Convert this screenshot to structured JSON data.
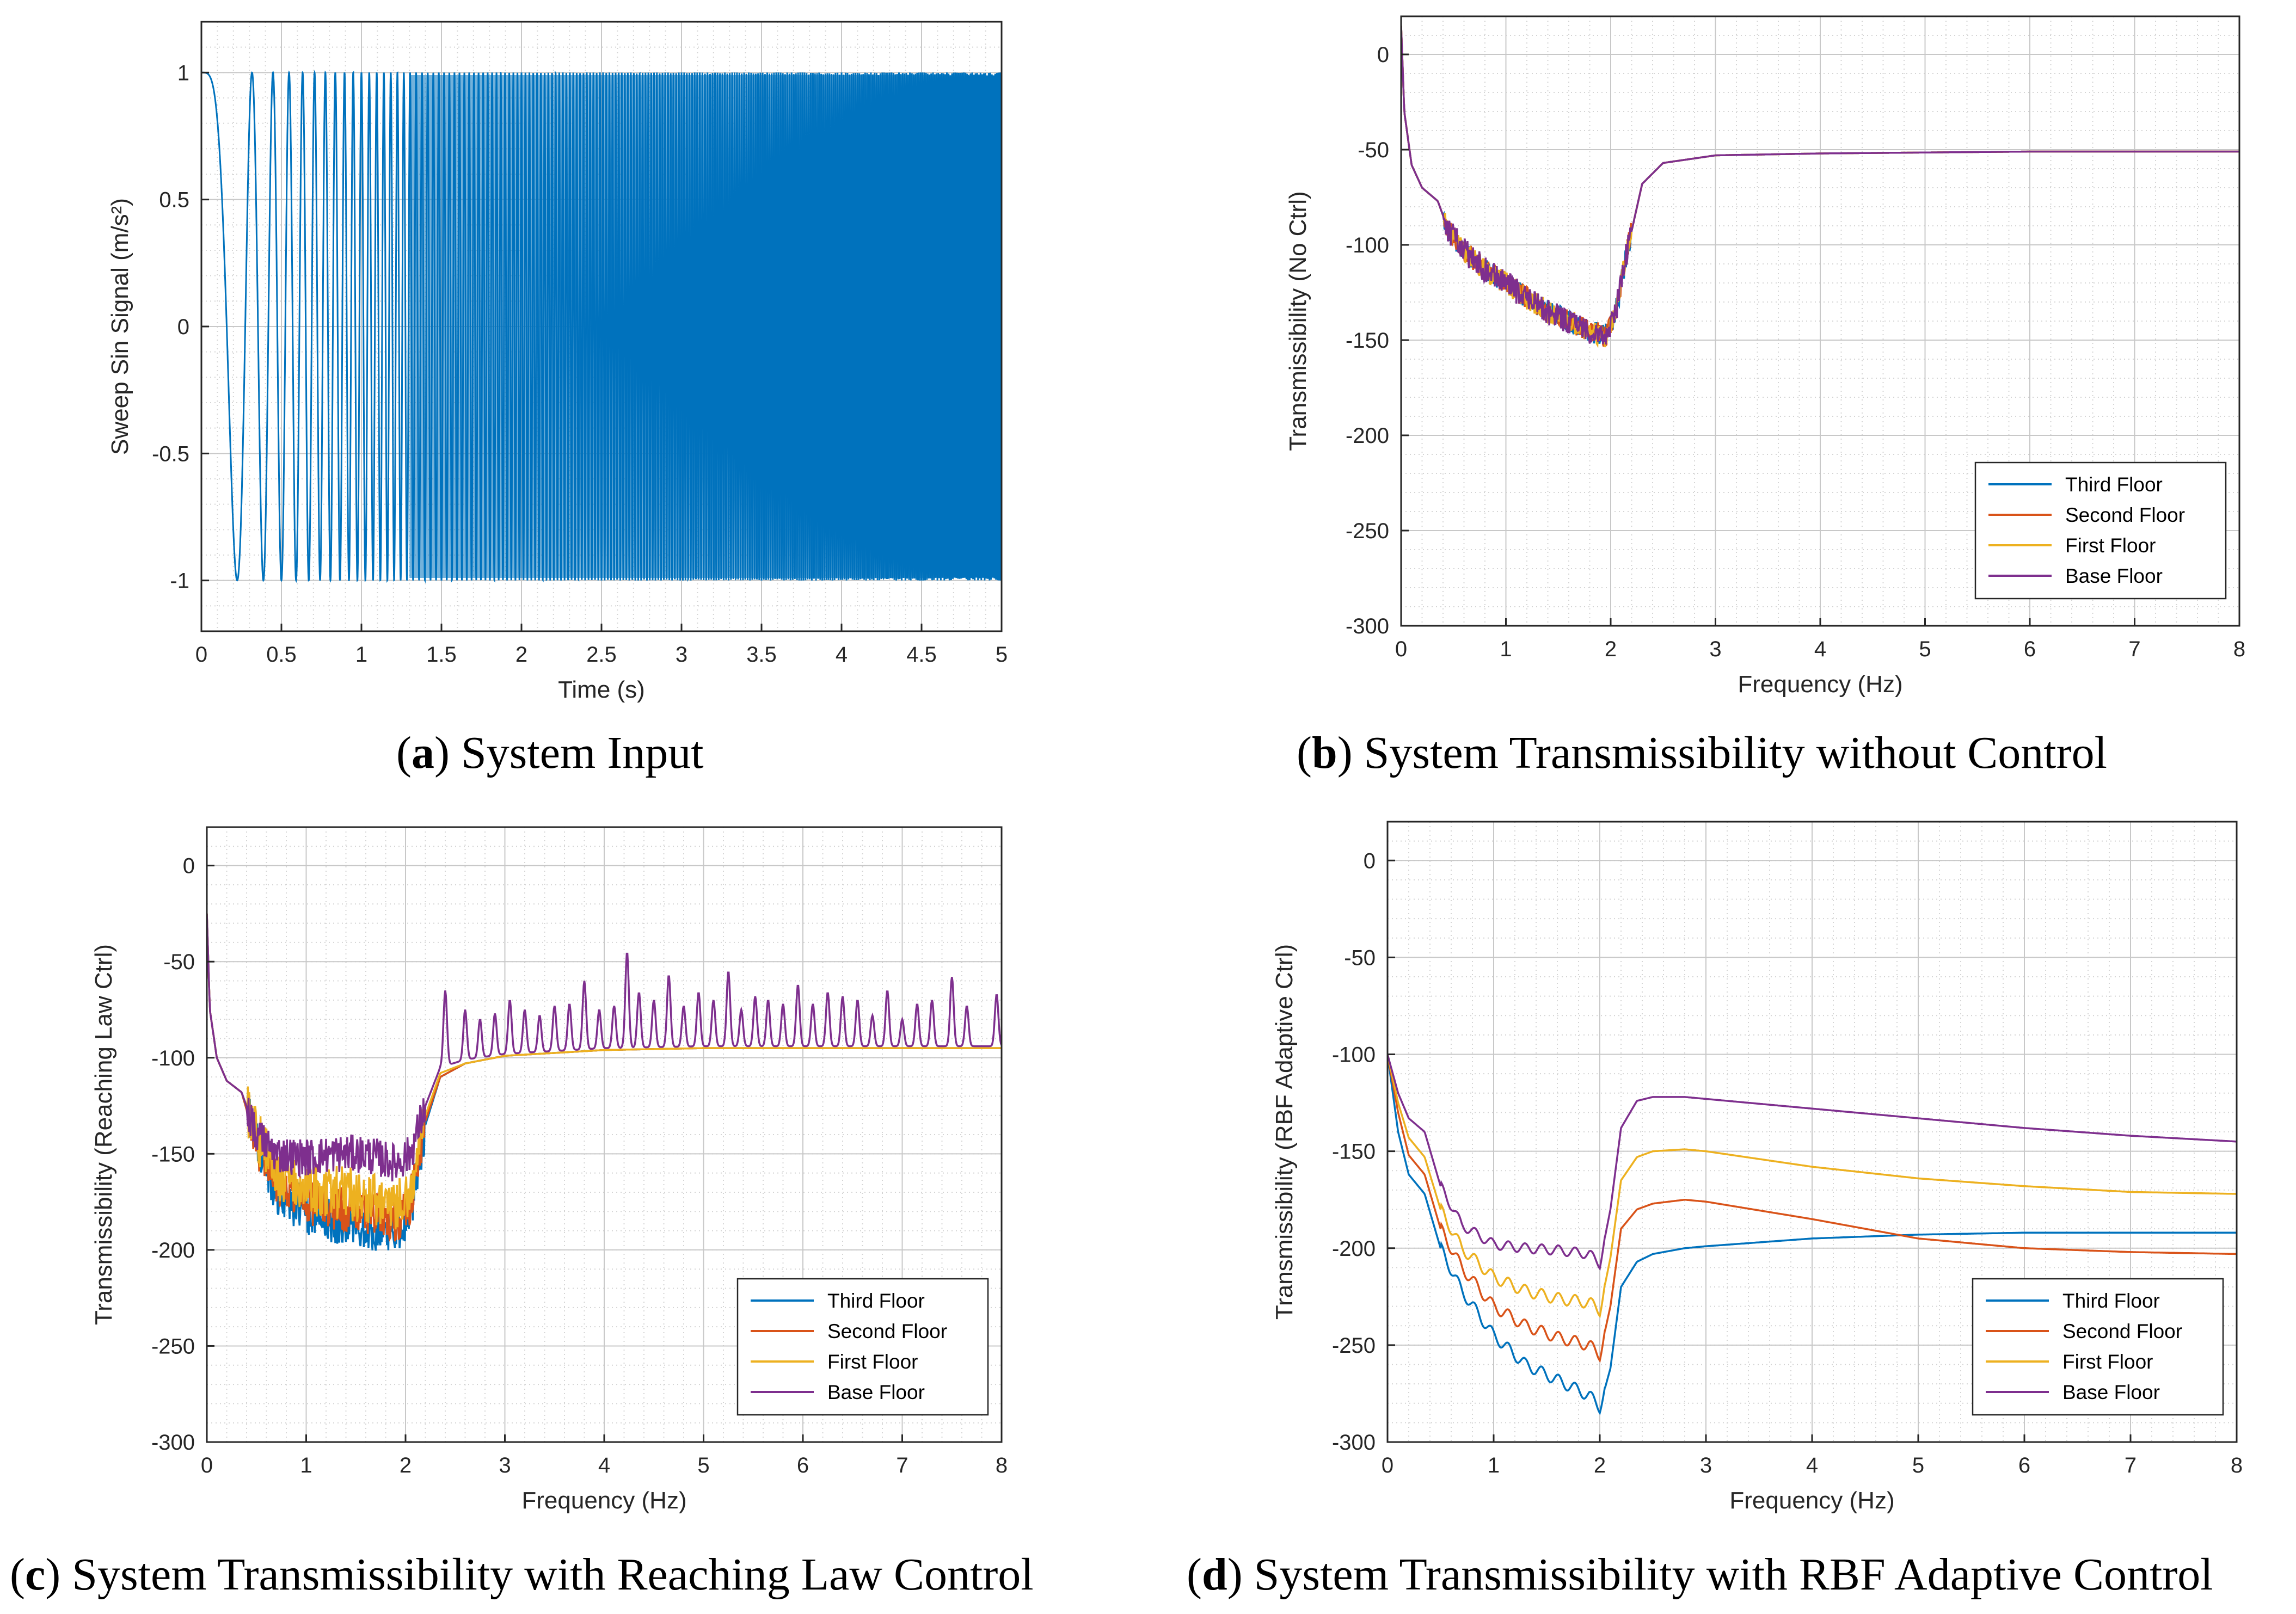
{
  "colors": {
    "blue": "#0072BD",
    "orange": "#D95319",
    "yellow": "#EDB120",
    "purple": "#7E2F8E",
    "grid": "#d4d4d4",
    "axis": "#262626"
  },
  "captions": [
    {
      "letter": "a",
      "text": ") System Input"
    },
    {
      "letter": "b",
      "text": ") System Transmissibility without Control"
    },
    {
      "letter": "c",
      "text": ") System Transmissibility with Reaching Law Control"
    },
    {
      "letter": "d",
      "text": ") System Transmissibility with RBF Adaptive Control"
    }
  ],
  "chart_data": [
    {
      "id": "a",
      "type": "line",
      "title": "System Input",
      "xlabel": "Time (s)",
      "ylabel": "Sweep Sin Signal (m/s²)",
      "xlim": [
        0,
        5
      ],
      "ylim": [
        -1.2,
        1.2
      ],
      "xticks": [
        0,
        0.5,
        1,
        1.5,
        2,
        2.5,
        3,
        3.5,
        4,
        4.5,
        5
      ],
      "xticklabels": [
        "0",
        "0.5",
        "1",
        "1.5",
        "2",
        "2.5",
        "3",
        "3.5",
        "4",
        "4.5",
        "5"
      ],
      "yticks": [
        -1,
        -0.5,
        0,
        0.5,
        1
      ],
      "yticklabels": [
        "-1",
        "-0.5",
        "0",
        "0.5",
        "1"
      ],
      "signal": {
        "kind": "sweep_sine",
        "amplitude": 1,
        "f_start_hz": 0,
        "f_end_hz": 100,
        "duration_s": 5
      },
      "series": [
        {
          "name": "Sweep Sin Signal",
          "color": "#0072BD"
        }
      ]
    },
    {
      "id": "b",
      "type": "line",
      "title": "System Transmissibility without Control",
      "xlabel": "Frequency (Hz)",
      "ylabel": "Transmissibility (No Ctrl)",
      "xlim": [
        0,
        8
      ],
      "ylim": [
        -300,
        20
      ],
      "xticks": [
        0,
        1,
        2,
        3,
        4,
        5,
        6,
        7,
        8
      ],
      "xticklabels": [
        "0",
        "1",
        "2",
        "3",
        "4",
        "5",
        "6",
        "7",
        "8"
      ],
      "yticks": [
        -300,
        -250,
        -200,
        -150,
        -100,
        -50,
        0
      ],
      "yticklabels": [
        "-300",
        "-250",
        "-200",
        "-150",
        "-100",
        "-50",
        "0"
      ],
      "legend": {
        "location": "bottom-right"
      },
      "series": [
        {
          "name": "Third Floor",
          "color": "#0072BD",
          "x": [
            0,
            0.03,
            0.1,
            0.2,
            0.35,
            0.45,
            0.6,
            0.8,
            1.0,
            1.2,
            1.4,
            1.6,
            1.8,
            1.95,
            2.05,
            2.15,
            2.3,
            2.5,
            3,
            4,
            5,
            6,
            7,
            8
          ],
          "y": [
            15,
            -30,
            -58,
            -70,
            -77,
            -92,
            -103,
            -113,
            -120,
            -128,
            -135,
            -140,
            -145,
            -148,
            -135,
            -105,
            -68,
            -57,
            -53,
            -52,
            -51.5,
            -51,
            -51,
            -51
          ],
          "noise": 6
        },
        {
          "name": "Second Floor",
          "color": "#D95319",
          "x": [
            0,
            0.03,
            0.1,
            0.2,
            0.35,
            0.45,
            0.6,
            0.8,
            1.0,
            1.2,
            1.4,
            1.6,
            1.8,
            1.95,
            2.05,
            2.15,
            2.3,
            2.5,
            3,
            4,
            5,
            6,
            7,
            8
          ],
          "y": [
            15,
            -30,
            -58,
            -70,
            -77,
            -92,
            -103,
            -113,
            -120,
            -128,
            -135,
            -140,
            -145,
            -148,
            -135,
            -105,
            -68,
            -57,
            -53,
            -52,
            -51.5,
            -51,
            -51,
            -51
          ],
          "noise": 6
        },
        {
          "name": "First Floor",
          "color": "#EDB120",
          "x": [
            0,
            0.03,
            0.1,
            0.2,
            0.35,
            0.45,
            0.6,
            0.8,
            1.0,
            1.2,
            1.4,
            1.6,
            1.8,
            1.95,
            2.05,
            2.15,
            2.3,
            2.5,
            3,
            4,
            5,
            6,
            7,
            8
          ],
          "y": [
            15,
            -30,
            -58,
            -70,
            -77,
            -92,
            -103,
            -113,
            -120,
            -128,
            -135,
            -140,
            -145,
            -148,
            -135,
            -105,
            -68,
            -57,
            -53,
            -52,
            -51.5,
            -51,
            -51,
            -51
          ],
          "noise": 6
        },
        {
          "name": "Base Floor",
          "color": "#7E2F8E",
          "x": [
            0,
            0.03,
            0.1,
            0.2,
            0.35,
            0.45,
            0.6,
            0.8,
            1.0,
            1.2,
            1.4,
            1.6,
            1.8,
            1.95,
            2.05,
            2.15,
            2.3,
            2.5,
            3,
            4,
            5,
            6,
            7,
            8
          ],
          "y": [
            15,
            -30,
            -58,
            -70,
            -77,
            -92,
            -103,
            -113,
            -120,
            -128,
            -135,
            -140,
            -145,
            -148,
            -135,
            -105,
            -68,
            -57,
            -53,
            -52,
            -51.5,
            -51,
            -51,
            -51
          ],
          "noise": 7
        }
      ]
    },
    {
      "id": "c",
      "type": "line",
      "title": "System Transmissibility with Reaching Law Control",
      "xlabel": "Frequency (Hz)",
      "ylabel": "Transmissibility (Reaching Law Ctrl)",
      "xlim": [
        0,
        8
      ],
      "ylim": [
        -300,
        20
      ],
      "xticks": [
        0,
        1,
        2,
        3,
        4,
        5,
        6,
        7,
        8
      ],
      "xticklabels": [
        "0",
        "1",
        "2",
        "3",
        "4",
        "5",
        "6",
        "7",
        "8"
      ],
      "yticks": [
        -300,
        -250,
        -200,
        -150,
        -100,
        -50,
        0
      ],
      "yticklabels": [
        "-300",
        "-250",
        "-200",
        "-150",
        "-100",
        "-50",
        "0"
      ],
      "legend": {
        "location": "bottom-right"
      },
      "series": [
        {
          "name": "Third Floor",
          "color": "#0072BD",
          "x": [
            0,
            0.03,
            0.1,
            0.2,
            0.35,
            0.5,
            0.7,
            1.0,
            1.3,
            1.6,
            1.9,
            2.05,
            2.2,
            2.35,
            2.6,
            3.0,
            4.0,
            5.0,
            6.0,
            7.0,
            8.0
          ],
          "y": [
            -25,
            -75,
            -100,
            -112,
            -118,
            -145,
            -170,
            -180,
            -185,
            -188,
            -190,
            -180,
            -135,
            -110,
            -103,
            -99,
            -96,
            -95,
            -95,
            -95,
            -95
          ],
          "noise": 12
        },
        {
          "name": "Second Floor",
          "color": "#D95319",
          "x": [
            0,
            0.03,
            0.1,
            0.2,
            0.35,
            0.5,
            0.7,
            1.0,
            1.3,
            1.6,
            1.9,
            2.05,
            2.2,
            2.35,
            2.6,
            3.0,
            4.0,
            5.0,
            6.0,
            7.0,
            8.0
          ],
          "y": [
            -25,
            -75,
            -100,
            -112,
            -118,
            -145,
            -165,
            -175,
            -178,
            -180,
            -185,
            -175,
            -133,
            -110,
            -103,
            -99,
            -96,
            -95,
            -95,
            -95,
            -95
          ],
          "noise": 12
        },
        {
          "name": "First Floor",
          "color": "#EDB120",
          "x": [
            0,
            0.03,
            0.1,
            0.2,
            0.35,
            0.5,
            0.7,
            1.0,
            1.3,
            1.6,
            1.9,
            2.05,
            2.2,
            2.35,
            2.6,
            3.0,
            4.0,
            5.0,
            6.0,
            7.0,
            8.0
          ],
          "y": [
            -25,
            -75,
            -100,
            -112,
            -118,
            -140,
            -160,
            -168,
            -170,
            -172,
            -176,
            -168,
            -130,
            -108,
            -103,
            -99,
            -96,
            -95,
            -95,
            -95,
            -95
          ],
          "noise": 14
        },
        {
          "name": "Base Floor",
          "color": "#7E2F8E",
          "x": [
            0,
            0.03,
            0.1,
            0.2,
            0.35,
            0.5,
            0.7,
            1.0,
            1.3,
            1.6,
            1.9,
            2.05,
            2.2,
            2.35,
            2.6,
            3.0,
            4.0,
            5.0,
            6.0,
            7.0,
            8.0
          ],
          "y": [
            -25,
            -75,
            -100,
            -112,
            -118,
            -140,
            -150,
            -152,
            -150,
            -150,
            -155,
            -150,
            -125,
            -105,
            -101,
            -98,
            -95,
            -94,
            -94,
            -94,
            -94
          ],
          "noise": 10,
          "peaks": [
            [
              2.4,
              -65
            ],
            [
              2.6,
              -75
            ],
            [
              2.75,
              -80
            ],
            [
              2.9,
              -77
            ],
            [
              3.05,
              -70
            ],
            [
              3.2,
              -75
            ],
            [
              3.35,
              -78
            ],
            [
              3.5,
              -73
            ],
            [
              3.65,
              -72
            ],
            [
              3.8,
              -60
            ],
            [
              3.95,
              -75
            ],
            [
              4.1,
              -73
            ],
            [
              4.23,
              -45
            ],
            [
              4.35,
              -66
            ],
            [
              4.5,
              -70
            ],
            [
              4.65,
              -57
            ],
            [
              4.8,
              -73
            ],
            [
              4.95,
              -66
            ],
            [
              5.1,
              -70
            ],
            [
              5.25,
              -55
            ],
            [
              5.38,
              -75
            ],
            [
              5.52,
              -68
            ],
            [
              5.65,
              -70
            ],
            [
              5.8,
              -72
            ],
            [
              5.95,
              -62
            ],
            [
              6.1,
              -72
            ],
            [
              6.25,
              -66
            ],
            [
              6.4,
              -68
            ],
            [
              6.55,
              -70
            ],
            [
              6.7,
              -78
            ],
            [
              6.85,
              -65
            ],
            [
              7.0,
              -80
            ],
            [
              7.15,
              -72
            ],
            [
              7.3,
              -70
            ],
            [
              7.5,
              -58
            ],
            [
              7.65,
              -73
            ],
            [
              7.95,
              -67
            ]
          ]
        }
      ]
    },
    {
      "id": "d",
      "type": "line",
      "title": "System Transmissibility with RBF Adaptive Control",
      "xlabel": "Frequency (Hz)",
      "ylabel": "Transmissibility (RBF Adaptive Ctrl)",
      "xlim": [
        0,
        8
      ],
      "ylim": [
        -300,
        20
      ],
      "xticks": [
        0,
        1,
        2,
        3,
        4,
        5,
        6,
        7,
        8
      ],
      "xticklabels": [
        "0",
        "1",
        "2",
        "3",
        "4",
        "5",
        "6",
        "7",
        "8"
      ],
      "yticks": [
        -300,
        -250,
        -200,
        -150,
        -100,
        -50,
        0
      ],
      "yticklabels": [
        "-300",
        "-250",
        "-200",
        "-150",
        "-100",
        "-50",
        "0"
      ],
      "legend": {
        "location": "bottom-right"
      },
      "series": [
        {
          "name": "Third Floor",
          "color": "#0072BD",
          "x": [
            0,
            0.1,
            0.2,
            0.35,
            0.5,
            0.7,
            1.0,
            1.3,
            1.6,
            1.9,
            2.0,
            2.1,
            2.2,
            2.35,
            2.5,
            2.8,
            3.0,
            4.0,
            5.0,
            6.0,
            7.0,
            8.0
          ],
          "y": [
            -100,
            -140,
            -162,
            -172,
            -200,
            -222,
            -245,
            -260,
            -268,
            -276,
            -282,
            -262,
            -220,
            -207,
            -203,
            -200,
            -199,
            -195,
            -193,
            -192,
            -192,
            -192
          ],
          "ripple": 6
        },
        {
          "name": "Second Floor",
          "color": "#D95319",
          "x": [
            0,
            0.1,
            0.2,
            0.35,
            0.5,
            0.7,
            1.0,
            1.3,
            1.6,
            1.9,
            2.0,
            2.1,
            2.2,
            2.35,
            2.5,
            2.8,
            3.0,
            4.0,
            5.0,
            6.0,
            7.0,
            8.0
          ],
          "y": [
            -100,
            -130,
            -152,
            -162,
            -190,
            -210,
            -230,
            -240,
            -246,
            -250,
            -255,
            -230,
            -190,
            -180,
            -177,
            -175,
            -176,
            -185,
            -195,
            -200,
            -202,
            -203
          ],
          "ripple": 6
        },
        {
          "name": "First Floor",
          "color": "#EDB120",
          "x": [
            0,
            0.1,
            0.2,
            0.35,
            0.5,
            0.7,
            1.0,
            1.3,
            1.6,
            1.9,
            2.0,
            2.1,
            2.2,
            2.35,
            2.5,
            2.8,
            3.0,
            4.0,
            5.0,
            6.0,
            7.0,
            8.0
          ],
          "y": [
            -100,
            -125,
            -143,
            -153,
            -180,
            -200,
            -215,
            -222,
            -226,
            -228,
            -232,
            -205,
            -165,
            -153,
            -150,
            -149,
            -150,
            -158,
            -164,
            -168,
            -171,
            -172
          ],
          "ripple": 6
        },
        {
          "name": "Base Floor",
          "color": "#7E2F8E",
          "x": [
            0,
            0.1,
            0.2,
            0.35,
            0.5,
            0.7,
            1.0,
            1.3,
            1.6,
            1.9,
            2.0,
            2.1,
            2.2,
            2.35,
            2.5,
            2.8,
            3.0,
            4.0,
            5.0,
            6.0,
            7.0,
            8.0
          ],
          "y": [
            -100,
            -120,
            -133,
            -140,
            -168,
            -188,
            -198,
            -200,
            -201,
            -203,
            -208,
            -180,
            -138,
            -124,
            -122,
            -122,
            -123,
            -128,
            -133,
            -138,
            -142,
            -145
          ],
          "ripple": 5
        }
      ]
    }
  ]
}
